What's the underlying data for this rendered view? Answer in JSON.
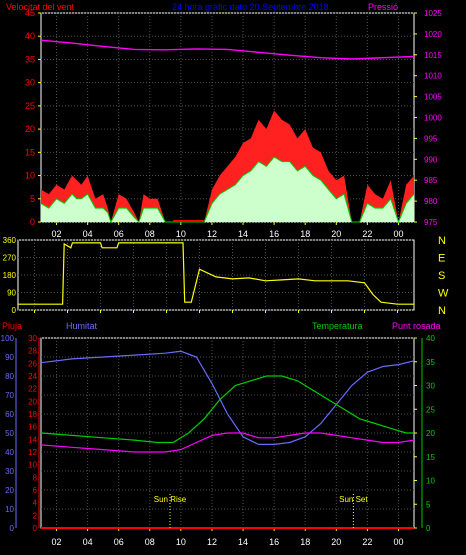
{
  "colors": {
    "wind": "#ff0000",
    "gust": "#ff2020",
    "wind_avg": "#ccffcc",
    "wind_line": "#00cc00",
    "pressure": "#ff00ff",
    "direction": "#ffff00",
    "humidity": "#6a6aff",
    "rain": "#ff0000",
    "temperature": "#00cc00",
    "dewpoint": "#ff00ff",
    "grid": "#505050",
    "axis_tick": "#ffff00",
    "title": "#0000ff"
  },
  "chart_data": [
    {
      "type": "line",
      "title": "24 hora gràfic dato   20 Septembre 2018",
      "left_label": "Velocitat del vent",
      "right_label": "Pressió",
      "y_left_ticks": [
        0,
        5,
        10,
        15,
        20,
        25,
        30,
        35,
        40,
        45
      ],
      "y_right_ticks": [
        975,
        980,
        985,
        990,
        995,
        1000,
        1005,
        1010,
        1015,
        1020,
        1025
      ],
      "ylim_left": [
        0,
        45
      ],
      "ylim_right": [
        975,
        1025
      ],
      "x_ticks": [
        "02",
        "04",
        "06",
        "08",
        "10",
        "12",
        "14",
        "16",
        "18",
        "20",
        "22",
        "00"
      ],
      "xlim_hours": [
        1,
        25
      ],
      "series": [
        {
          "name": "Velocitat del vent",
          "role": "gust",
          "x": [
            1,
            1.5,
            2,
            2.5,
            3,
            3.3,
            3.6,
            4,
            4.5,
            5,
            5.3,
            5.5,
            6,
            6.5,
            7,
            7.3,
            7.6,
            8,
            8.5,
            9,
            9.5,
            10,
            10.5,
            11,
            11.5,
            12,
            12.5,
            13,
            13.5,
            14,
            14.5,
            15,
            15.5,
            16,
            16.5,
            17,
            17.5,
            18,
            18.5,
            19,
            19.5,
            20,
            20.5,
            21,
            21.5,
            22,
            22.5,
            23,
            23.5,
            24,
            24.5,
            25
          ],
          "values": [
            7,
            6,
            8,
            7,
            10,
            9,
            8,
            10,
            5,
            6,
            3,
            0,
            6,
            5,
            2,
            0,
            6,
            5,
            5,
            0,
            0,
            0,
            0,
            0,
            0,
            7,
            10,
            12,
            14,
            17,
            18,
            22,
            20,
            24,
            22,
            21,
            18,
            20,
            16,
            15,
            11,
            9,
            10,
            0,
            0,
            8,
            6,
            5,
            9,
            0,
            8,
            10
          ]
        },
        {
          "name": "Velocitat del vent",
          "role": "average",
          "x": [
            1,
            1.5,
            2,
            2.5,
            3,
            3.3,
            3.6,
            4,
            4.5,
            5,
            5.3,
            5.5,
            6,
            6.5,
            7,
            7.3,
            7.6,
            8,
            8.5,
            9,
            9.5,
            10,
            10.5,
            11,
            11.5,
            12,
            12.5,
            13,
            13.5,
            14,
            14.5,
            15,
            15.5,
            16,
            16.5,
            17,
            17.5,
            18,
            18.5,
            19,
            19.5,
            20,
            20.5,
            21,
            21.5,
            22,
            22.5,
            23,
            23.5,
            24,
            24.5,
            25
          ],
          "values": [
            4,
            3,
            5,
            4,
            6,
            5,
            5,
            6,
            3,
            3,
            2,
            0,
            3,
            3,
            1,
            0,
            3,
            3,
            3,
            0,
            0,
            0,
            0,
            0,
            0,
            4,
            6,
            7,
            8,
            10,
            11,
            13,
            12,
            14,
            13,
            13,
            11,
            12,
            10,
            9,
            7,
            5,
            6,
            0,
            0,
            4,
            3,
            3,
            5,
            0,
            4,
            6
          ]
        },
        {
          "name": "Pressió",
          "x": [
            1,
            3,
            5,
            7,
            9,
            11,
            13,
            15,
            17,
            19,
            21,
            23,
            25
          ],
          "values": [
            1018.5,
            1017.8,
            1017.0,
            1016.3,
            1016.2,
            1016.4,
            1016.3,
            1015.6,
            1014.9,
            1014.3,
            1014.0,
            1014.3,
            1014.6
          ]
        }
      ]
    },
    {
      "type": "line",
      "y_ticks": [
        0,
        90,
        180,
        270,
        360
      ],
      "right_ticks": [
        "N",
        "W",
        "S",
        "E",
        "N"
      ],
      "ylim": [
        0,
        360
      ],
      "x_ticks": [
        "02",
        "04",
        "06",
        "08",
        "10",
        "12",
        "14",
        "16",
        "18",
        "20",
        "22",
        "00"
      ],
      "xlim_hours": [
        1,
        25
      ],
      "series": [
        {
          "x": [
            1,
            2,
            3,
            3.7,
            3.8,
            4.2,
            4.3,
            6,
            6.1,
            7,
            7.1,
            8.2,
            8.3,
            11,
            11.1,
            11.5,
            12,
            13,
            14,
            15,
            16,
            17,
            18,
            19,
            20,
            21,
            22,
            22.5,
            23,
            24,
            25
          ],
          "values": [
            30,
            30,
            30,
            30,
            340,
            320,
            345,
            345,
            320,
            320,
            345,
            345,
            345,
            345,
            40,
            40,
            210,
            170,
            160,
            165,
            150,
            155,
            160,
            150,
            150,
            150,
            140,
            80,
            40,
            30,
            30
          ]
        }
      ]
    },
    {
      "type": "line",
      "left_label": "Pluja",
      "humidity_label": "Humitat",
      "temperature_label": "Temperatura",
      "dewpoint_label": "Punt rosada",
      "y_humidity_ticks": [
        0,
        10,
        20,
        30,
        40,
        50,
        60,
        70,
        80,
        90,
        100
      ],
      "y_temp_left_ticks": [
        0,
        2,
        4,
        6,
        8,
        10,
        12,
        14,
        16,
        18,
        20,
        22,
        24,
        26,
        28,
        30
      ],
      "y_temp_right_ticks": [
        0,
        5,
        10,
        15,
        20,
        25,
        30,
        35,
        40
      ],
      "ylim_humidity": [
        0,
        100
      ],
      "ylim_temp": [
        0,
        40
      ],
      "x_ticks": [
        "02",
        "04",
        "06",
        "08",
        "10",
        "12",
        "14",
        "16",
        "18",
        "20",
        "22",
        "00"
      ],
      "xlim_hours": [
        1,
        25
      ],
      "annotations": [
        {
          "label": "Sun Rise",
          "x": 9.3
        },
        {
          "label": "Sun Set",
          "x": 21.1
        }
      ],
      "series": [
        {
          "name": "Humitat",
          "x": [
            1,
            3,
            5,
            7,
            9,
            10,
            11,
            12,
            13,
            14,
            15,
            16,
            17,
            18,
            19,
            20,
            21,
            22,
            23,
            24,
            25
          ],
          "values": [
            87,
            89,
            90,
            91,
            92,
            93,
            90,
            76,
            60,
            48,
            44,
            44,
            45,
            48,
            55,
            65,
            75,
            82,
            85,
            86,
            88
          ]
        },
        {
          "name": "Pluja",
          "x": [
            1,
            25
          ],
          "values": [
            0,
            0
          ]
        },
        {
          "name": "Temperatura",
          "x": [
            1,
            3,
            5,
            7,
            8.5,
            9.5,
            10.5,
            11.5,
            12.5,
            13.5,
            14.5,
            15.5,
            16.5,
            17.5,
            18.5,
            19.5,
            20.5,
            21.5,
            22.5,
            23.5,
            24.5,
            25
          ],
          "values": [
            20,
            19.5,
            19,
            18.5,
            18,
            18,
            20,
            23,
            27,
            30,
            31,
            32,
            32,
            31,
            29,
            27,
            25,
            23,
            22,
            21,
            20,
            20
          ]
        },
        {
          "name": "Punt rosada",
          "x": [
            1,
            3,
            5,
            7,
            9,
            10,
            11,
            12,
            13,
            14,
            15,
            16,
            17,
            18,
            19,
            20,
            21,
            22,
            23,
            24,
            25
          ],
          "values": [
            17.5,
            17,
            16.5,
            16,
            16,
            16.5,
            18,
            19.5,
            20,
            20,
            19,
            19,
            19.5,
            20,
            20,
            19.5,
            19,
            18.5,
            18,
            18,
            18.5
          ]
        }
      ]
    }
  ]
}
